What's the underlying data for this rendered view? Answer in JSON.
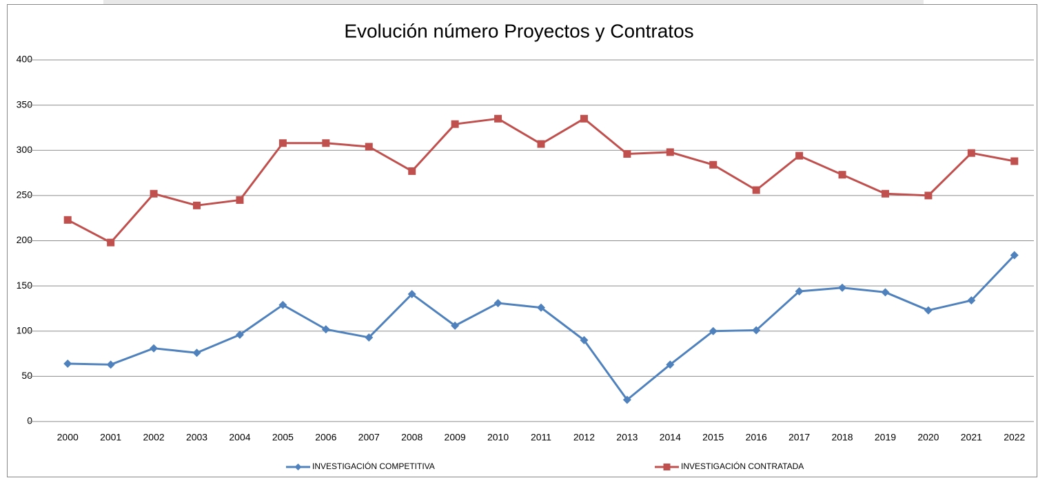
{
  "chart_data": {
    "type": "line",
    "title": "Evolución número Proyectos y Contratos",
    "categories": [
      "2000",
      "2001",
      "2002",
      "2003",
      "2004",
      "2005",
      "2006",
      "2007",
      "2008",
      "2009",
      "2010",
      "2011",
      "2012",
      "2013",
      "2014",
      "2015",
      "2016",
      "2017",
      "2018",
      "2019",
      "2020",
      "2021",
      "2022"
    ],
    "series": [
      {
        "name": "INVESTIGACIÓN COMPETITIVA",
        "color": "#4f81bd",
        "marker": "diamond",
        "values": [
          64,
          63,
          81,
          76,
          96,
          129,
          102,
          93,
          141,
          106,
          131,
          126,
          90,
          24,
          63,
          100,
          101,
          144,
          148,
          143,
          123,
          134,
          184
        ]
      },
      {
        "name": "INVESTIGACIÓN CONTRATADA",
        "color": "#c0504d",
        "marker": "square",
        "values": [
          223,
          198,
          252,
          239,
          245,
          308,
          308,
          304,
          277,
          329,
          335,
          307,
          335,
          296,
          298,
          284,
          256,
          294,
          273,
          252,
          250,
          297,
          288
        ]
      }
    ],
    "ylim": [
      0,
      400
    ],
    "yticks": [
      0,
      50,
      100,
      150,
      200,
      250,
      300,
      350,
      400
    ],
    "grid": true,
    "legend": "bottom"
  }
}
